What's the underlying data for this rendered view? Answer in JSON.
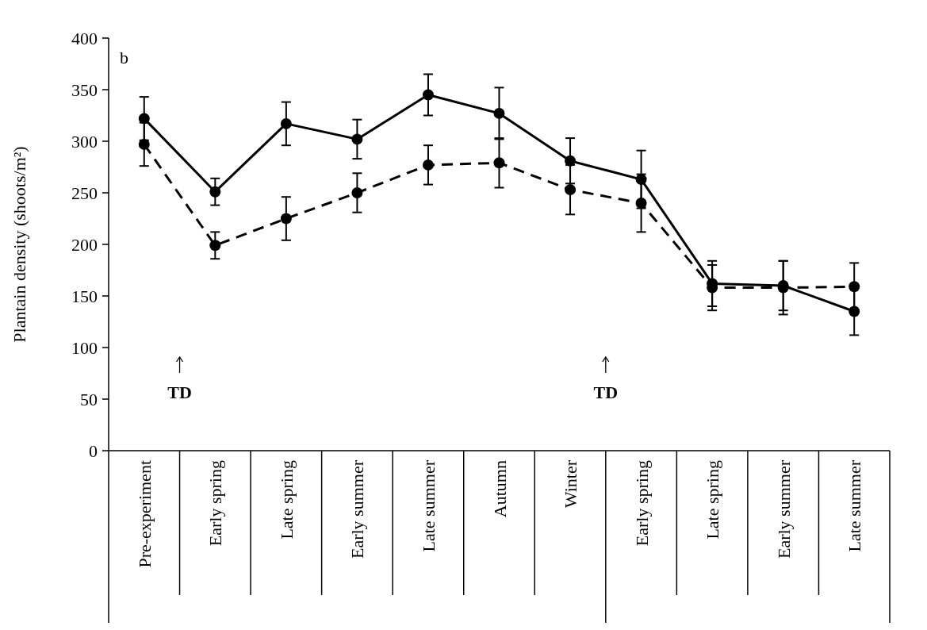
{
  "chart_data": {
    "type": "line",
    "ylabel": "Plantain density (shoots/m²)",
    "categories": [
      "Pre-experiment",
      "Early spring",
      "Late spring",
      "Early summer",
      "Late summer",
      "Autumn",
      "Winter",
      "Early spring",
      "Late spring",
      "Early summer",
      "Late summer"
    ],
    "series": [
      {
        "color": "#000000",
        "line_style": "solid",
        "values": [
          322,
          251,
          317,
          302,
          345,
          327,
          281,
          263,
          162,
          160,
          135
        ],
        "errors": [
          21,
          13,
          21,
          19,
          20,
          25,
          22,
          28,
          22,
          24,
          23
        ]
      },
      {
        "color": "#000000",
        "line_style": "dashed",
        "values": [
          297,
          199,
          225,
          250,
          277,
          279,
          253,
          240,
          158,
          158,
          159
        ],
        "errors": [
          21,
          13,
          21,
          19,
          19,
          24,
          24,
          28,
          22,
          26,
          23
        ]
      }
    ],
    "ylim": [
      0,
      400
    ],
    "yticks": [
      0,
      50,
      100,
      150,
      200,
      250,
      300,
      350,
      400
    ],
    "grid": false,
    "marker": "circle",
    "annotations": [
      "b",
      "TD",
      "TD"
    ]
  }
}
